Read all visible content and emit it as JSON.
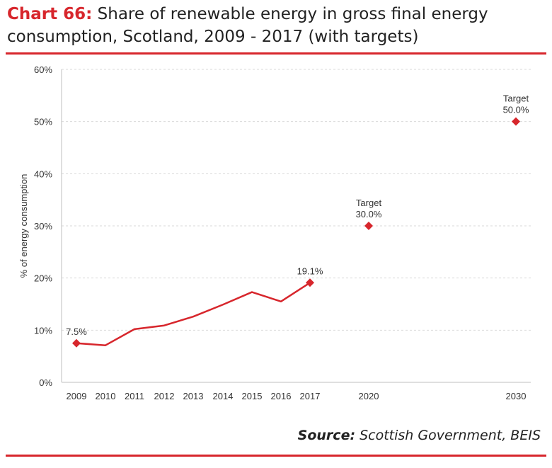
{
  "header": {
    "title_prefix": "Chart 66:",
    "title_text": " Share of renewable energy in gross final energy consumption, Scotland, 2009 - 2017 (with targets)"
  },
  "footer": {
    "source_label": "Source:",
    "source_text": " Scottish Government, BEIS"
  },
  "colors": {
    "accent": "#d7262c",
    "grid": "#d9d9d9",
    "axis": "#bfbfbf"
  },
  "chart_data": {
    "type": "line",
    "ylabel": "% of energy consumption",
    "ylim": [
      0,
      60
    ],
    "y_ticks": [
      "0%",
      "10%",
      "20%",
      "30%",
      "40%",
      "50%",
      "60%"
    ],
    "x_ticks": [
      "2009",
      "2010",
      "2011",
      "2012",
      "2013",
      "2014",
      "2015",
      "2016",
      "2017",
      "2020",
      "2030"
    ],
    "grid": true,
    "series": [
      {
        "x": [
          "2009",
          "2010",
          "2011",
          "2012",
          "2013",
          "2014",
          "2015",
          "2016",
          "2017"
        ],
        "values": [
          7.5,
          7.1,
          10.2,
          10.9,
          12.6,
          14.9,
          17.3,
          15.5,
          19.1
        ]
      }
    ],
    "markers": [
      {
        "x": "2009",
        "value": 7.5,
        "label": "7.5%"
      },
      {
        "x": "2017",
        "value": 19.1,
        "label": "19.1%"
      },
      {
        "x": "2020",
        "value": 30.0,
        "label": "Target\n30.0%"
      },
      {
        "x": "2030",
        "value": 50.0,
        "label": "Target\n50.0%"
      }
    ]
  }
}
